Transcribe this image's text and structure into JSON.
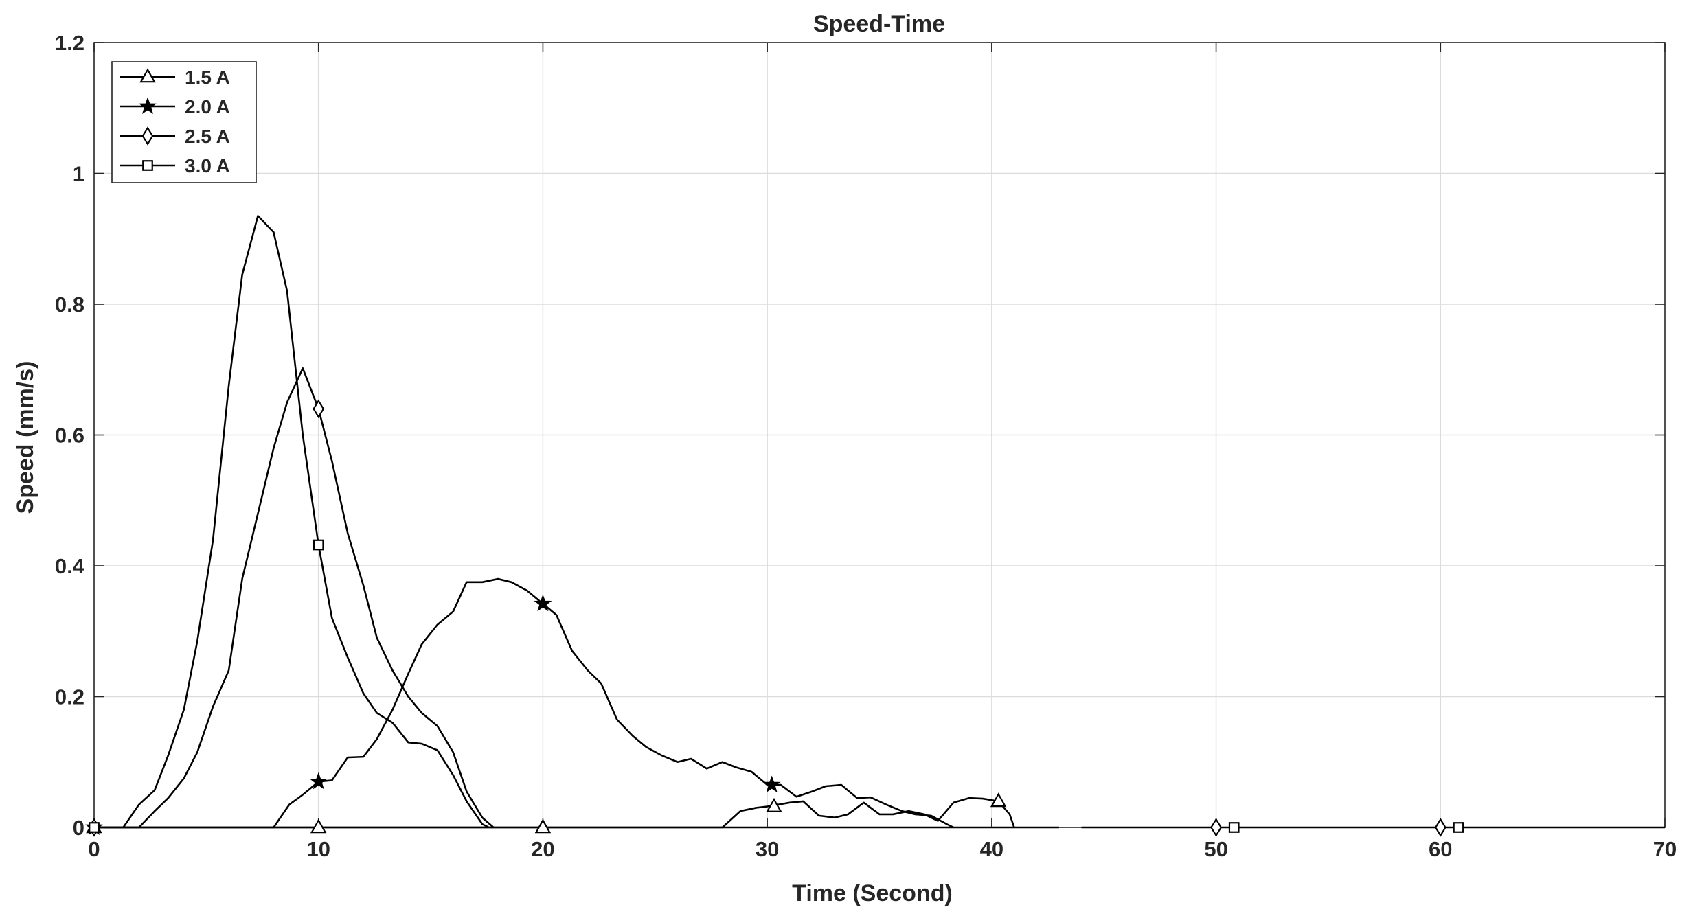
{
  "chart_data": {
    "type": "line",
    "title": "Speed-Time",
    "xlabel": "Time (Second)",
    "ylabel": "Speed (mm/s)",
    "xlim": [
      0,
      70
    ],
    "ylim": [
      0,
      1.2
    ],
    "xticks": [
      0,
      10,
      20,
      30,
      40,
      50,
      60,
      70
    ],
    "yticks": [
      0,
      0.2,
      0.4,
      0.6,
      0.8,
      1,
      1.2
    ],
    "xtick_labels": [
      "0",
      "10",
      "20",
      "30",
      "40",
      "50",
      "60",
      "70"
    ],
    "ytick_labels": [
      "0",
      "0.2",
      "0.4",
      "0.6",
      "0.8",
      "1",
      "1.2"
    ],
    "grid": true,
    "legend_position": "top-left",
    "series": [
      {
        "name": "1.5 A",
        "marker": "triangle",
        "x": [
          0,
          10,
          20,
          28,
          28.8,
          29.5,
          30,
          30.5,
          31,
          31.6,
          32.3,
          33,
          33.6,
          34.3,
          35,
          35.6,
          36.3,
          37,
          37.6,
          38.3,
          39,
          39.6,
          40.3,
          40.8,
          41
        ],
        "y": [
          0,
          0,
          0,
          0,
          0.025,
          0.03,
          0.032,
          0.035,
          0.038,
          0.04,
          0.018,
          0.015,
          0.02,
          0.038,
          0.02,
          0.02,
          0.025,
          0.02,
          0.01,
          0.038,
          0.045,
          0.044,
          0.04,
          0.02,
          0
        ],
        "markers_at": [
          [
            0,
            0
          ],
          [
            10,
            0
          ],
          [
            20,
            0
          ],
          [
            30.3,
            0.032
          ],
          [
            40.3,
            0.04
          ]
        ]
      },
      {
        "name": "2.0 A",
        "marker": "star",
        "x": [
          0,
          8,
          8.7,
          9.3,
          10,
          10.6,
          11.3,
          12,
          12.6,
          13.3,
          14,
          14.6,
          15.3,
          16,
          16.6,
          17.3,
          18,
          18.6,
          19.3,
          20,
          20.6,
          21.3,
          22,
          22.6,
          23.3,
          24,
          24.6,
          25.3,
          26,
          26.6,
          27.3,
          28,
          28.6,
          29.3,
          30,
          30.6,
          31.3,
          32,
          32.6,
          33.3,
          34,
          34.6,
          35.3,
          36,
          36.6,
          37.3,
          38,
          38.3
        ],
        "y": [
          0,
          0,
          0.035,
          0.05,
          0.07,
          0.072,
          0.107,
          0.108,
          0.135,
          0.18,
          0.235,
          0.28,
          0.31,
          0.33,
          0.375,
          0.375,
          0.38,
          0.375,
          0.362,
          0.342,
          0.325,
          0.27,
          0.24,
          0.22,
          0.165,
          0.14,
          0.123,
          0.11,
          0.1,
          0.105,
          0.09,
          0.1,
          0.092,
          0.085,
          0.065,
          0.065,
          0.047,
          0.055,
          0.063,
          0.065,
          0.045,
          0.046,
          0.035,
          0.025,
          0.02,
          0.018,
          0.005,
          0
        ],
        "markers_at": [
          [
            0,
            0
          ],
          [
            10,
            0.07
          ],
          [
            20,
            0.342
          ],
          [
            30.2,
            0.065
          ]
        ]
      },
      {
        "name": "2.5 A",
        "marker": "diamond",
        "x": [
          0,
          2,
          2.7,
          3.3,
          4,
          4.6,
          5.3,
          6,
          6.6,
          7.3,
          8,
          8.6,
          9.3,
          10,
          10.6,
          11.3,
          12,
          12.6,
          13.3,
          14,
          14.6,
          15.3,
          16,
          16.6,
          17.3,
          17.8
        ],
        "y": [
          0,
          0,
          0.025,
          0.045,
          0.075,
          0.115,
          0.185,
          0.24,
          0.38,
          0.48,
          0.58,
          0.65,
          0.702,
          0.64,
          0.56,
          0.45,
          0.37,
          0.29,
          0.24,
          0.2,
          0.175,
          0.155,
          0.115,
          0.055,
          0.015,
          0
        ],
        "markers_at": [
          [
            0,
            0
          ],
          [
            10,
            0.64
          ],
          [
            50,
            0
          ],
          [
            60,
            0
          ]
        ]
      },
      {
        "name": "3.0 A",
        "marker": "square",
        "x": [
          0,
          1.3,
          2,
          2.7,
          3.3,
          4,
          4.6,
          5.3,
          6,
          6.6,
          7.3,
          8,
          8.6,
          9.3,
          10,
          10.6,
          11.3,
          12,
          12.6,
          13.3,
          14,
          14.6,
          15.3,
          16,
          16.6,
          17.3,
          17.6
        ],
        "y": [
          0,
          0,
          0.035,
          0.057,
          0.11,
          0.18,
          0.285,
          0.44,
          0.675,
          0.845,
          0.935,
          0.91,
          0.82,
          0.6,
          0.432,
          0.32,
          0.26,
          0.205,
          0.175,
          0.16,
          0.13,
          0.128,
          0.118,
          0.08,
          0.04,
          0.005,
          0
        ],
        "markers_at": [
          [
            0,
            0
          ],
          [
            10,
            0.432
          ],
          [
            50.8,
            0
          ],
          [
            60.8,
            0
          ]
        ]
      }
    ],
    "baseline_segments": [
      [
        0,
        43
      ],
      [
        44,
        70
      ]
    ]
  }
}
